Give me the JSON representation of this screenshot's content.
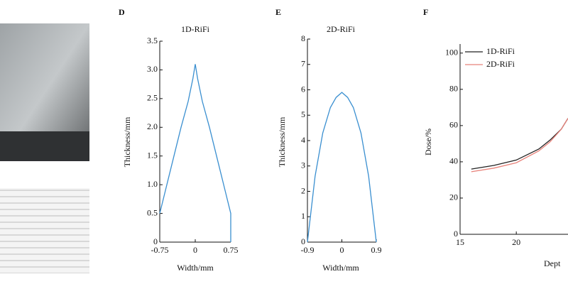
{
  "chart_data": [
    {
      "type": "line",
      "panel_label": "D",
      "title": "1D-RiFi",
      "x_label": "Width/mm",
      "y_label": "Thickness/mm",
      "x": [
        -0.75,
        -0.6,
        -0.45,
        -0.3,
        -0.15,
        -0.05,
        0,
        0.05,
        0.15,
        0.3,
        0.45,
        0.6,
        0.75,
        0.75
      ],
      "series": [
        {
          "color": "#3a8fd0",
          "values": [
            0.5,
            1.0,
            1.5,
            2.0,
            2.45,
            2.85,
            3.1,
            2.85,
            2.45,
            2.0,
            1.5,
            1.0,
            0.5,
            0
          ]
        }
      ],
      "xlim": [
        -0.75,
        0.75
      ],
      "xticks": [
        -0.75,
        0,
        0.75
      ],
      "ylim": [
        0,
        3.5
      ],
      "yticks": [
        0,
        0.5,
        {
          "value": 1,
          "label": "1.0"
        },
        1.5,
        {
          "value": 2,
          "label": "2.0"
        },
        2.5,
        {
          "value": 3,
          "label": "3.0"
        },
        3.5
      ]
    },
    {
      "type": "line",
      "panel_label": "E",
      "title": "2D-RiFi",
      "x_label": "Width/mm",
      "y_label": "Thickness/mm",
      "x": [
        -0.9,
        -0.7,
        -0.5,
        -0.3,
        -0.15,
        0,
        0.15,
        0.3,
        0.5,
        0.7,
        0.9
      ],
      "series": [
        {
          "color": "#3a8fd0",
          "values": [
            0,
            2.6,
            4.3,
            5.3,
            5.7,
            5.9,
            5.7,
            5.3,
            4.3,
            2.6,
            0
          ]
        }
      ],
      "xlim": [
        -0.9,
        0.9
      ],
      "xticks": [
        -0.9,
        0,
        0.9
      ],
      "ylim": [
        0,
        8
      ],
      "yticks": [
        0,
        1,
        2,
        3,
        4,
        5,
        6,
        7,
        8
      ]
    },
    {
      "type": "line",
      "panel_label": "F",
      "x_label": "Dept",
      "y_label": "Dose/%",
      "x": [
        16,
        18,
        20,
        22,
        23,
        24,
        24.6
      ],
      "series": [
        {
          "name": "1D-RiFi",
          "color": "#222222",
          "values": [
            36,
            38,
            41,
            47,
            52,
            58,
            64
          ]
        },
        {
          "name": "2D-RiFi",
          "color": "#e8827a",
          "values": [
            34.5,
            36.5,
            39.5,
            46,
            51,
            58,
            64
          ]
        }
      ],
      "xlim": [
        15,
        24.6
      ],
      "xticks": [
        15,
        20
      ],
      "ylim": [
        0,
        105
      ],
      "yticks": [
        0,
        20,
        40,
        60,
        80,
        100
      ]
    }
  ]
}
